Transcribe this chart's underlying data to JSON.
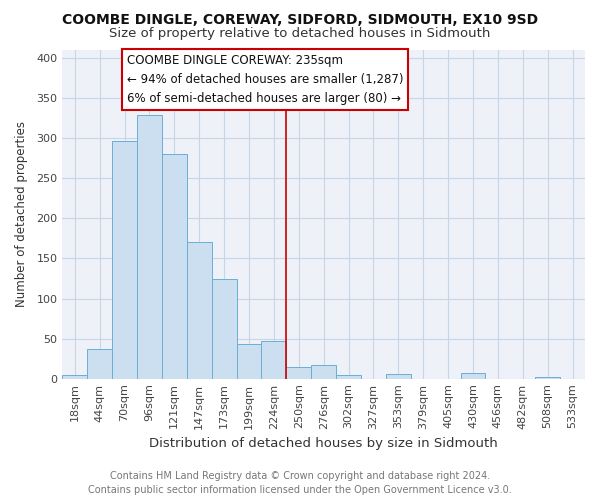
{
  "title": "COOMBE DINGLE, COREWAY, SIDFORD, SIDMOUTH, EX10 9SD",
  "subtitle": "Size of property relative to detached houses in Sidmouth",
  "xlabel": "Distribution of detached houses by size in Sidmouth",
  "ylabel": "Number of detached properties",
  "bin_labels": [
    "18sqm",
    "44sqm",
    "70sqm",
    "96sqm",
    "121sqm",
    "147sqm",
    "173sqm",
    "199sqm",
    "224sqm",
    "250sqm",
    "276sqm",
    "302sqm",
    "327sqm",
    "353sqm",
    "379sqm",
    "405sqm",
    "430sqm",
    "456sqm",
    "482sqm",
    "508sqm",
    "533sqm"
  ],
  "bar_values": [
    4,
    37,
    296,
    329,
    280,
    170,
    124,
    43,
    47,
    15,
    17,
    5,
    0,
    6,
    0,
    0,
    7,
    0,
    0,
    2,
    0
  ],
  "bar_color": "#ccdff0",
  "bar_edge_color": "#6aafd6",
  "annotation_text": "COOMBE DINGLE COREWAY: 235sqm\n← 94% of detached houses are smaller (1,287)\n6% of semi-detached houses are larger (80) →",
  "annotation_box_color": "#ffffff",
  "annotation_box_edge": "#cc0000",
  "vline_x_index": 8.5,
  "vline_color": "#cc0000",
  "ylim": [
    0,
    410
  ],
  "yticks": [
    0,
    50,
    100,
    150,
    200,
    250,
    300,
    350,
    400
  ],
  "plot_bg_color": "#eef2f8",
  "fig_bg_color": "#ffffff",
  "grid_color": "#c8d4e8",
  "footer_text": "Contains HM Land Registry data © Crown copyright and database right 2024.\nContains public sector information licensed under the Open Government Licence v3.0.",
  "title_fontsize": 10,
  "subtitle_fontsize": 9.5,
  "xlabel_fontsize": 9.5,
  "ylabel_fontsize": 8.5,
  "annotation_fontsize": 8.5,
  "footer_fontsize": 7,
  "tick_fontsize": 8
}
